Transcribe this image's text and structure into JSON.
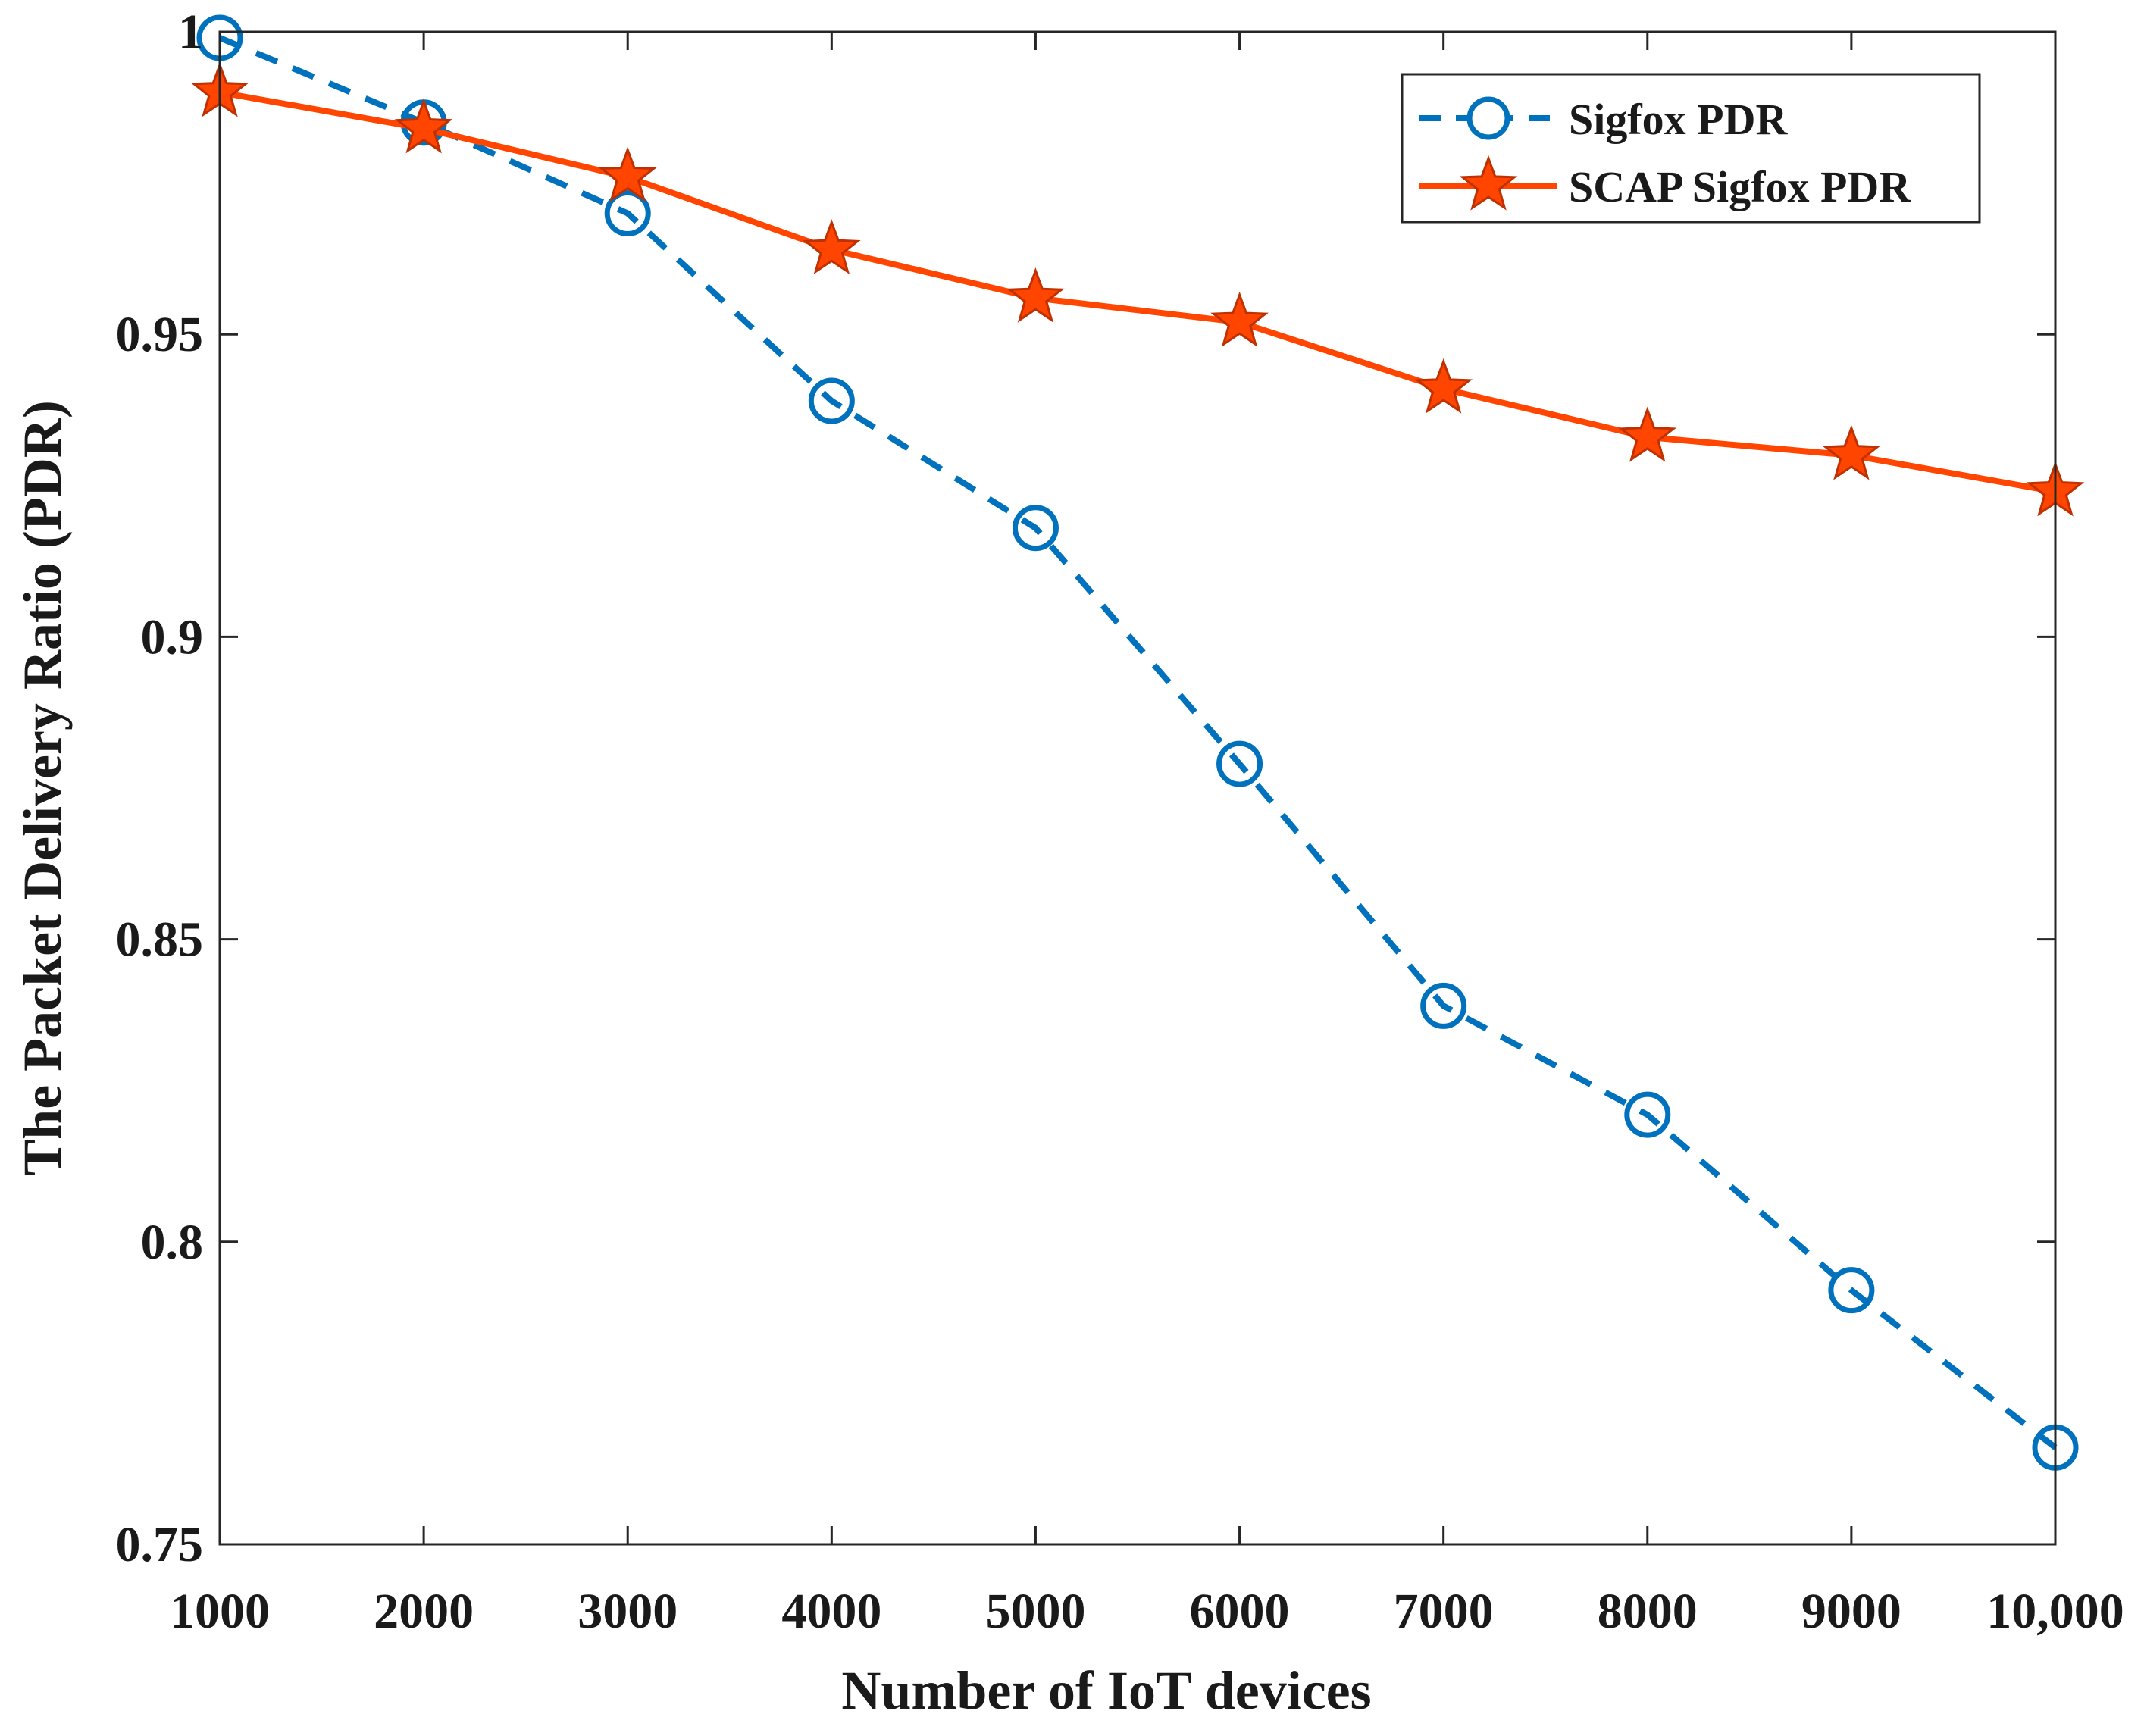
{
  "chart_data": {
    "type": "line",
    "title": "",
    "xlabel": "Number of IoT devices",
    "ylabel": "The Packet Delivery Ratio (PDR)",
    "x": [
      1000,
      2000,
      3000,
      4000,
      5000,
      6000,
      7000,
      8000,
      9000,
      10000
    ],
    "x_tick_labels": [
      "1000",
      "2000",
      "3000",
      "4000",
      "5000",
      "6000",
      "7000",
      "8000",
      "9000",
      "10,000"
    ],
    "y_ticks": [
      0.75,
      0.8,
      0.85,
      0.9,
      0.95,
      1
    ],
    "y_tick_labels": [
      "0.75",
      "0.8",
      "0.85",
      "0.9",
      "0.95",
      "1"
    ],
    "xlim": [
      1000,
      10000
    ],
    "ylim": [
      0.75,
      1.0
    ],
    "grid": false,
    "legend_position": "top-right",
    "series": [
      {
        "name": "Sigfox PDR",
        "values": [
          0.999,
          0.985,
          0.97,
          0.939,
          0.918,
          0.879,
          0.839,
          0.821,
          0.792,
          0.766
        ],
        "color": "#0072BD",
        "line_style": "dashed",
        "marker": "circle"
      },
      {
        "name": "SCAP Sigfox PDR",
        "values": [
          0.99,
          0.984,
          0.976,
          0.964,
          0.956,
          0.952,
          0.941,
          0.933,
          0.93,
          0.924
        ],
        "color": "#FF4500",
        "line_style": "solid",
        "marker": "star"
      }
    ]
  }
}
